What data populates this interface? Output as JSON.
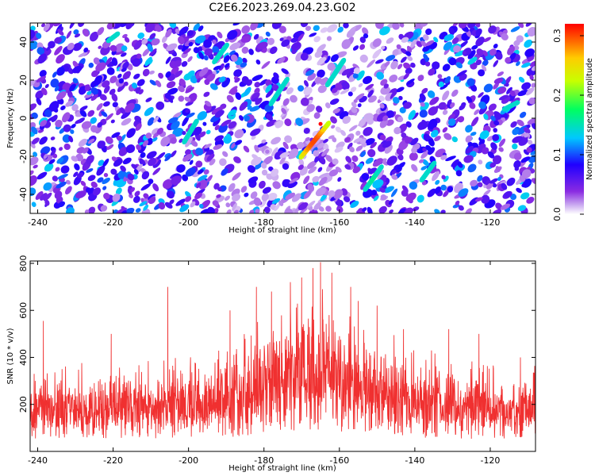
{
  "title": "C2E6.2023.269.04.23.G02",
  "colors": {
    "background": "#ffffff",
    "snr_line": "#f03030",
    "colormap": [
      "#ffffff",
      "#c9a8f0",
      "#8a2be2",
      "#2000ff",
      "#00c8ff",
      "#00ff60",
      "#c8ff00",
      "#ffcc00",
      "#ff0000"
    ]
  },
  "chart_data": [
    {
      "type": "heatmap",
      "xlabel": "Height of straight line (km)",
      "ylabel": "Frequency (Hz)",
      "xlim": [
        -242,
        -108
      ],
      "ylim": [
        -50,
        50
      ],
      "xticks": [
        -240,
        -220,
        -200,
        -180,
        -160,
        -140,
        -120
      ],
      "yticks": [
        -40,
        -20,
        0,
        20,
        40
      ],
      "colorbar": {
        "label": "Normalized spectral amplitude",
        "range": [
          0.0,
          0.32
        ],
        "ticks": [
          0.0,
          0.1,
          0.2,
          0.3
        ],
        "tick_labels": [
          "0.0",
          "0.1",
          "0.2",
          "0.3"
        ]
      },
      "streaks": [
        {
          "x0": -170,
          "y0": -20,
          "x1": -163,
          "y1": -3,
          "peak": 0.3
        },
        {
          "x0": -153,
          "y0": -37,
          "x1": -149,
          "y1": -26,
          "peak": 0.16
        },
        {
          "x0": -178,
          "y0": 8,
          "x1": -174,
          "y1": 20,
          "peak": 0.14
        },
        {
          "x0": -163,
          "y0": 18,
          "x1": -159,
          "y1": 30,
          "peak": 0.13
        },
        {
          "x0": -193,
          "y0": 30,
          "x1": -190,
          "y1": 38,
          "peak": 0.12
        },
        {
          "x0": -201,
          "y0": -12,
          "x1": -198,
          "y1": -2,
          "peak": 0.11
        },
        {
          "x0": -138,
          "y0": -32,
          "x1": -135,
          "y1": -24,
          "peak": 0.11
        },
        {
          "x0": -116,
          "y0": 5,
          "x1": -113,
          "y1": 8,
          "peak": 0.12
        },
        {
          "x0": -221,
          "y0": 41,
          "x1": -219,
          "y1": 44,
          "peak": 0.11
        }
      ],
      "peak": {
        "x": -165,
        "y": -3,
        "value": 0.32
      }
    },
    {
      "type": "line",
      "xlabel": "Height of straight line (km)",
      "ylabel": "SNR (10 * v/v)",
      "xlim": [
        -242,
        -108
      ],
      "ylim": [
        0,
        810
      ],
      "xticks": [
        -240,
        -220,
        -200,
        -180,
        -160,
        -140,
        -120
      ],
      "yticks": [
        200,
        400,
        600,
        800
      ],
      "series": [
        {
          "profile_x": [
            -242,
            -230,
            -220,
            -210,
            -200,
            -190,
            -180,
            -175,
            -170,
            -165,
            -160,
            -150,
            -140,
            -130,
            -120,
            -108
          ],
          "base": [
            170,
            175,
            180,
            180,
            185,
            210,
            260,
            300,
            330,
            330,
            300,
            240,
            200,
            185,
            175,
            170
          ],
          "spread": [
            120,
            120,
            125,
            125,
            130,
            150,
            190,
            215,
            240,
            240,
            215,
            175,
            145,
            135,
            125,
            120
          ],
          "spikes": [
            {
              "x": -238.5,
              "y": 555
            },
            {
              "x": -220.5,
              "y": 500
            },
            {
              "x": -205.5,
              "y": 700
            },
            {
              "x": -189,
              "y": 600
            },
            {
              "x": -182,
              "y": 700
            },
            {
              "x": -178,
              "y": 680
            },
            {
              "x": -173,
              "y": 720
            },
            {
              "x": -170,
              "y": 740
            },
            {
              "x": -167,
              "y": 780
            },
            {
              "x": -165,
              "y": 805
            },
            {
              "x": -162,
              "y": 760
            },
            {
              "x": -157,
              "y": 700
            },
            {
              "x": -155,
              "y": 640
            },
            {
              "x": -150,
              "y": 620
            },
            {
              "x": -143,
              "y": 520
            },
            {
              "x": -131,
              "y": 520
            },
            {
              "x": -123,
              "y": 500
            },
            {
              "x": -112,
              "y": 400
            }
          ]
        }
      ]
    }
  ]
}
